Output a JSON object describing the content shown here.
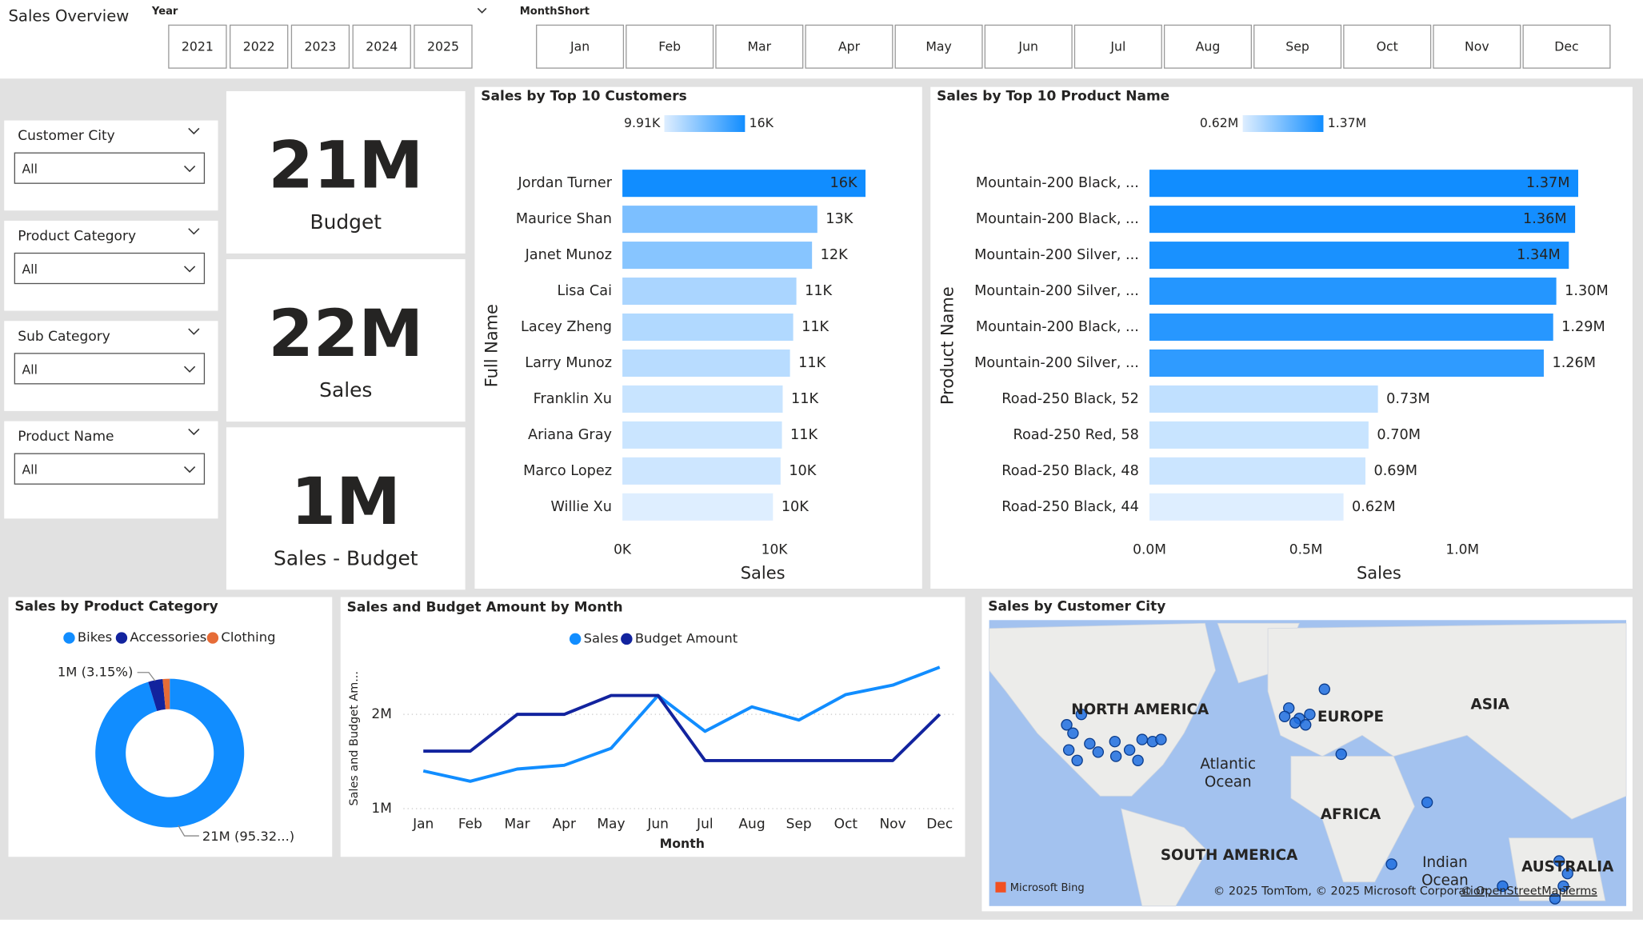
{
  "header": {
    "title": "Sales Overview",
    "year_label": "Year",
    "years": [
      "2021",
      "2022",
      "2023",
      "2024",
      "2025"
    ],
    "month_label": "MonthShort",
    "months": [
      "Jan",
      "Feb",
      "Mar",
      "Apr",
      "May",
      "Jun",
      "Jul",
      "Aug",
      "Sep",
      "Oct",
      "Nov",
      "Dec"
    ]
  },
  "slicers": [
    {
      "label": "Customer City",
      "value": "All"
    },
    {
      "label": "Product Category",
      "value": "All"
    },
    {
      "label": "Sub Category",
      "value": "All"
    },
    {
      "label": "Product Name",
      "value": "All"
    }
  ],
  "cards": [
    {
      "value": "21M",
      "label": "Budget"
    },
    {
      "value": "22M",
      "label": "Sales"
    },
    {
      "value": "1M",
      "label": "Sales - Budget"
    }
  ],
  "chart_data": [
    {
      "type": "hbar",
      "title": "Sales by Top 10 Customers",
      "categories": [
        "Jordan Turner",
        "Maurice Shan",
        "Janet Munoz",
        "Lisa Cai",
        "Lacey Zheng",
        "Larry Munoz",
        "Franklin Xu",
        "Ariana Gray",
        "Marco Lopez",
        "Willie Xu"
      ],
      "values": [
        16000,
        12830,
        12480,
        11450,
        11240,
        11030,
        10550,
        10500,
        10410,
        9910
      ],
      "value_labels": [
        "16K",
        "13K",
        "12K",
        "11K",
        "11K",
        "11K",
        "11K",
        "11K",
        "10K",
        "10K"
      ],
      "xlim": [
        0,
        18000
      ],
      "xticks": [
        {
          "value": 0,
          "label": "0K"
        },
        {
          "value": 10000,
          "label": "10K"
        }
      ],
      "x_label": "Sales",
      "y_label": "Full Name",
      "color_scale": {
        "min": 9910,
        "max": 16000,
        "min_label": "9.91K",
        "max_label": "16K",
        "min_color": "#deeeff",
        "max_color": "#118dff"
      }
    },
    {
      "type": "hbar",
      "title": "Sales by Top 10 Product Name",
      "categories": [
        "Mountain-200 Black, ...",
        "Mountain-200 Black, ...",
        "Mountain-200 Silver, ...",
        "Mountain-200 Silver, ...",
        "Mountain-200 Black, ...",
        "Mountain-200 Silver, ...",
        "Road-250 Black, 52",
        "Road-250 Red, 58",
        "Road-250 Black, 48",
        "Road-250 Black, 44"
      ],
      "values": [
        1370000,
        1360000,
        1340000,
        1300000,
        1290000,
        1260000,
        730000,
        700000,
        690000,
        620000
      ],
      "value_labels": [
        "1.37M",
        "1.36M",
        "1.34M",
        "1.30M",
        "1.29M",
        "1.26M",
        "0.73M",
        "0.70M",
        "0.69M",
        "0.62M"
      ],
      "xlim": [
        0,
        1500000
      ],
      "xticks": [
        {
          "value": 0,
          "label": "0.0M"
        },
        {
          "value": 500000,
          "label": "0.5M"
        },
        {
          "value": 1000000,
          "label": "1.0M"
        }
      ],
      "x_label": "Sales",
      "y_label": "Product Name",
      "color_scale": {
        "min": 620000,
        "max": 1370000,
        "min_label": "0.62M",
        "max_label": "1.37M",
        "min_color": "#deeeff",
        "max_color": "#118dff"
      }
    },
    {
      "type": "donut",
      "title": "Sales by Product Category",
      "categories": [
        "Bikes",
        "Accessories",
        "Clothing"
      ],
      "values": [
        95.32,
        3.15,
        1.53
      ],
      "value_labels": [
        "21M (95.32...)",
        "1M (3.15%)",
        null
      ],
      "colors": [
        "#118dff",
        "#12239e",
        "#e66c37"
      ]
    },
    {
      "type": "line",
      "title": "Sales and Budget Amount by Month",
      "categories": [
        "Jan",
        "Feb",
        "Mar",
        "Apr",
        "May",
        "Jun",
        "Jul",
        "Aug",
        "Sep",
        "Oct",
        "Nov",
        "Dec"
      ],
      "series": [
        {
          "name": "Sales",
          "color": "#118dff",
          "values": [
            1400000,
            1290000,
            1420000,
            1460000,
            1640000,
            2200000,
            1820000,
            2080000,
            1940000,
            2210000,
            2310000,
            2500000
          ]
        },
        {
          "name": "Budget Amount",
          "color": "#12239e",
          "values": [
            1610000,
            1610000,
            2000000,
            2000000,
            2200000,
            2200000,
            1510000,
            1510000,
            1510000,
            1510000,
            1510000,
            2000000
          ]
        }
      ],
      "ylim": [
        900000,
        2600000
      ],
      "yticks": [
        {
          "value": 1000000,
          "label": "1M"
        },
        {
          "value": 2000000,
          "label": "2M"
        }
      ],
      "grid": true,
      "x_label": "Month",
      "y_label": "Sales and Budget Am..."
    }
  ],
  "map": {
    "title": "Sales by Customer City",
    "labels": [
      "NORTH AMERICA",
      "EUROPE",
      "ASIA",
      "AFRICA",
      "SOUTH AMERICA",
      "AUSTRALIA"
    ],
    "ocean_labels": [
      [
        "Atlantic",
        "Ocean"
      ],
      [
        "Indian",
        "Ocean"
      ]
    ],
    "provider": "Microsoft Bing",
    "attribution": "© 2025 TomTom, © 2025 Microsoft Corporation,",
    "osm": "© OpenStreetMap",
    "terms": "Terms"
  }
}
